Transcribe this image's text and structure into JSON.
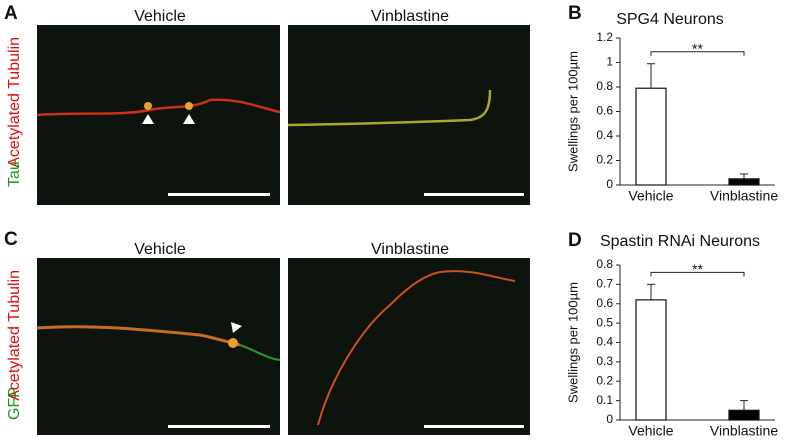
{
  "micrographs": [
    {
      "label": "A",
      "stain_green": "Tau",
      "stain_red": "Acetylated Tubulin",
      "conditions": [
        "Vehicle",
        "Vinblastine"
      ]
    },
    {
      "label": "C",
      "stain_green": "GFP",
      "stain_red": "Acetylated Tubulin",
      "conditions": [
        "Vehicle",
        "Vinblastine"
      ]
    }
  ],
  "chart_data": [
    {
      "panel_label": "B",
      "type": "bar",
      "title": "SPG4 Neurons",
      "y_label": "Swellings per 100µm",
      "categories": [
        "Vehicle",
        "Vinblastine"
      ],
      "values": [
        0.79,
        0.05
      ],
      "errors": [
        0.2,
        0.04
      ],
      "colors": [
        "#ffffff",
        "#000000"
      ],
      "ylim": [
        0,
        1.2
      ],
      "yticks": [
        0,
        0.2,
        0.4,
        0.6,
        0.8,
        1,
        1.2
      ],
      "significance": "**"
    },
    {
      "panel_label": "D",
      "type": "bar",
      "title": "Spastin RNAi Neurons",
      "y_label": "Swellings per 100µm",
      "categories": [
        "Vehicle",
        "Vinblastine"
      ],
      "values": [
        0.62,
        0.05
      ],
      "errors": [
        0.08,
        0.05
      ],
      "colors": [
        "#ffffff",
        "#000000"
      ],
      "ylim": [
        0,
        0.8
      ],
      "yticks": [
        0,
        0.1,
        0.2,
        0.3,
        0.4,
        0.5,
        0.6,
        0.7,
        0.8
      ],
      "significance": "**"
    }
  ]
}
